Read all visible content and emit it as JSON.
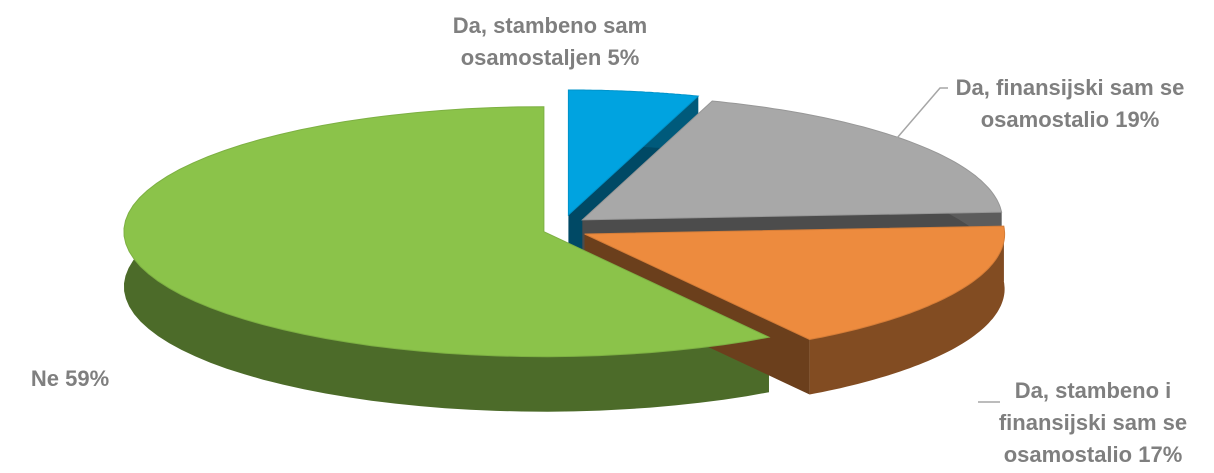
{
  "chart_data": {
    "type": "pie3d",
    "categories": [
      "Da, stambeno sam osamostaljen",
      "Da, finansijski sam se osamostalio",
      "Da, stambeno i finansijski sam se osamostalio",
      "Ne"
    ],
    "values": [
      5,
      19,
      17,
      59
    ],
    "value_labels": [
      "5%",
      "19%",
      "17%",
      "59%"
    ],
    "colors": [
      "#00a3e0",
      "#a8a8a8",
      "#ed8b3e",
      "#8bc34a"
    ]
  }
}
